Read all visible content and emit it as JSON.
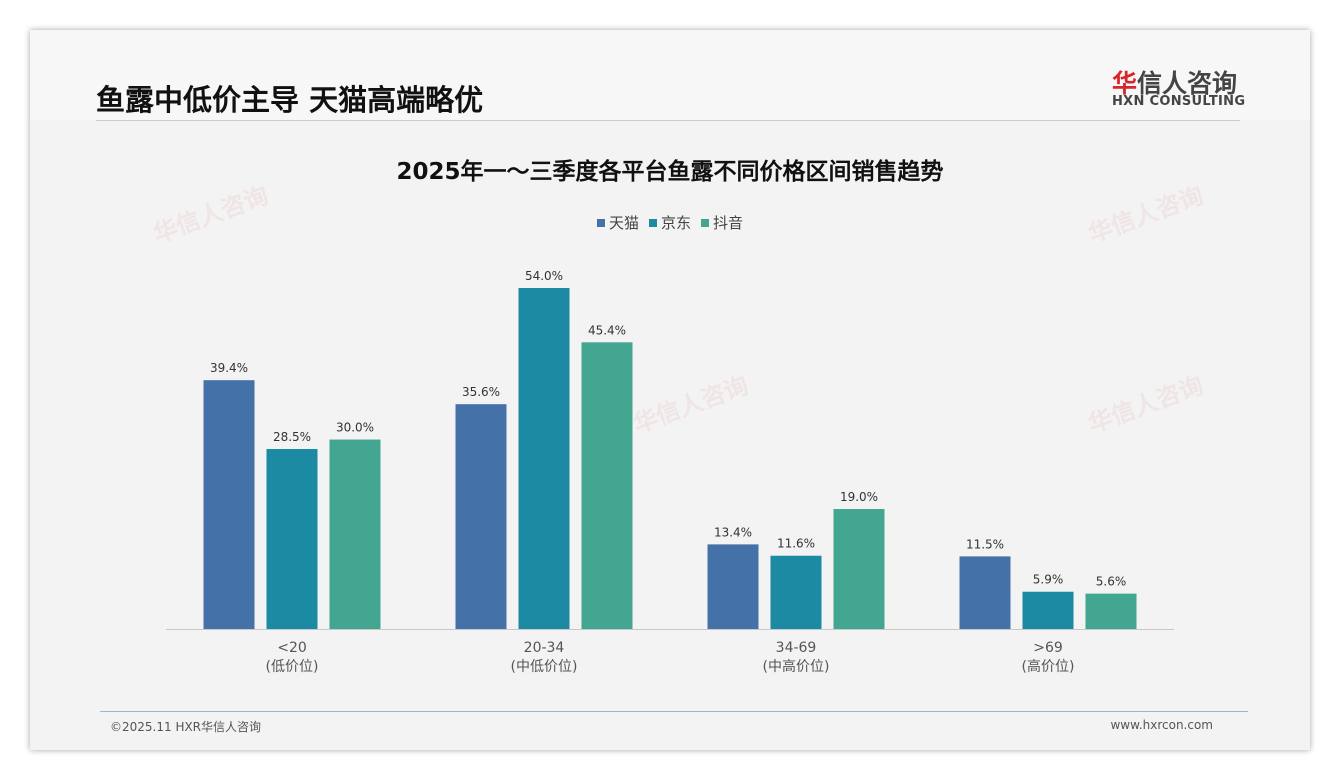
{
  "header": {
    "title": "鱼露中低价主导 天猫高端略优",
    "logo_cn_red": "华",
    "logo_cn": "信人咨询",
    "logo_en": "HXN CONSULTING"
  },
  "footer": {
    "left": "©2025.11 HXR华信人咨询",
    "right": "www.hxrcon.com"
  },
  "chart_data": {
    "type": "bar",
    "title": "2025年一～三季度各平台鱼露不同价格区间销售趋势",
    "categories": [
      "<20",
      "20-34",
      "34-69",
      ">69"
    ],
    "category_sublabels": [
      "(低价位)",
      "(中低价位)",
      "(中高价位)",
      "(高价位)"
    ],
    "series": [
      {
        "name": "天猫",
        "color": "#4472a8",
        "values": [
          39.4,
          35.6,
          13.4,
          11.5
        ]
      },
      {
        "name": "京东",
        "color": "#1b8aa2",
        "values": [
          28.5,
          54.0,
          11.6,
          5.9
        ]
      },
      {
        "name": "抖音",
        "color": "#42a691",
        "values": [
          30.0,
          45.4,
          19.0,
          5.6
        ]
      }
    ],
    "value_suffix": "%",
    "ylim": [
      0,
      54
    ],
    "legend": "top-center",
    "grid": false
  }
}
